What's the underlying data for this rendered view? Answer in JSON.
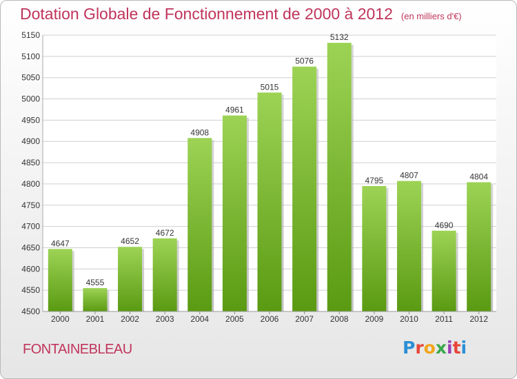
{
  "header": {
    "title": "Dotation Globale de Fonctionnement de 2000 à 2012",
    "unit_note": "(en milliers d'€)"
  },
  "footer": {
    "commune": "FONTAINEBLEAU",
    "logo_letters": [
      "P",
      "r",
      "o",
      "x",
      "i",
      "t",
      "i"
    ],
    "logo_colors": [
      "#2a8fd6",
      "#e8463a",
      "#f2a51a",
      "#3aa84a",
      "#9b3fb5",
      "#e8463a",
      "#2a8fd6"
    ]
  },
  "colors": {
    "bar_top": "#9dd355",
    "bar_bottom": "#5a9a12",
    "grid": "#cfcfcf",
    "axis_text": "#333333",
    "label_text": "#333333"
  },
  "chart_data": {
    "type": "bar",
    "categories": [
      "2000",
      "2001",
      "2002",
      "2003",
      "2004",
      "2005",
      "2006",
      "2007",
      "2008",
      "2009",
      "2010",
      "2011",
      "2012"
    ],
    "values": [
      4647,
      4555,
      4652,
      4672,
      4908,
      4961,
      5015,
      5076,
      5132,
      4795,
      4807,
      4690,
      4804
    ],
    "ylim": [
      4500,
      5150
    ],
    "yticks": [
      4500,
      4550,
      4600,
      4650,
      4700,
      4750,
      4800,
      4850,
      4900,
      4950,
      5000,
      5050,
      5100,
      5150
    ],
    "grid": true
  }
}
